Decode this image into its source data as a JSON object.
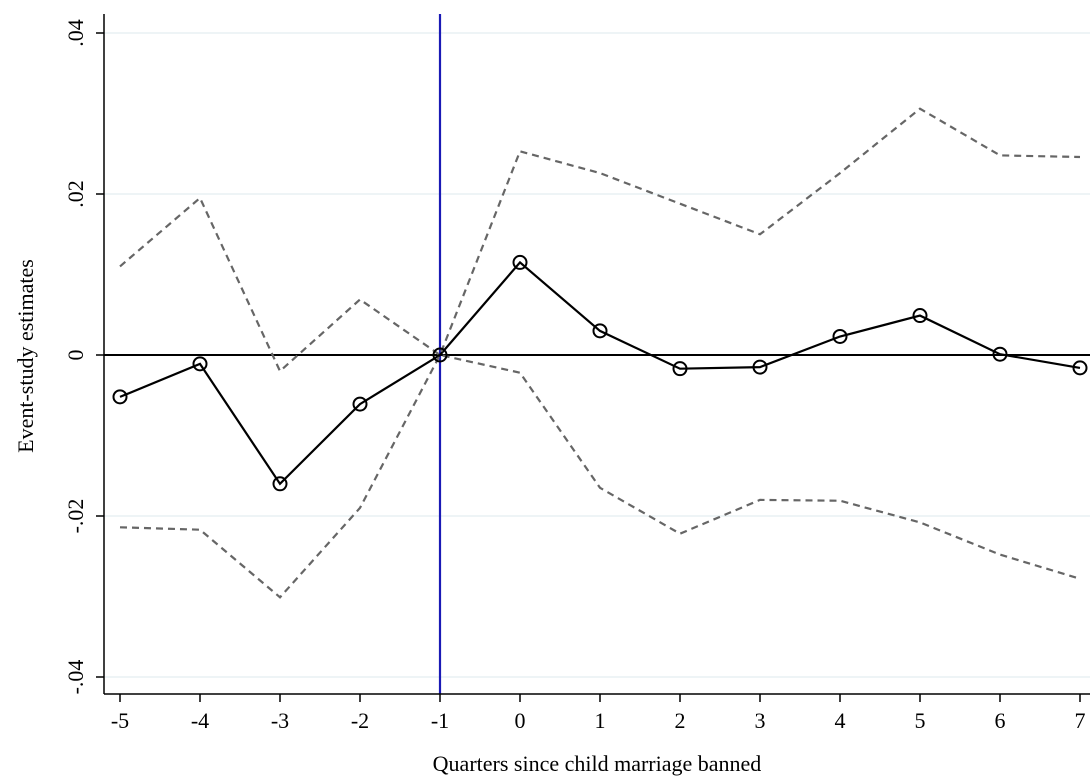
{
  "chart_data": {
    "type": "line",
    "title": "",
    "xlabel": "Quarters since child marriage banned",
    "ylabel": "Event-study estimates",
    "x": [
      -5,
      -4,
      -3,
      -2,
      -1,
      0,
      1,
      2,
      3,
      4,
      5,
      6,
      7
    ],
    "xticks": [
      "-5",
      "-4",
      "-3",
      "-2",
      "-1",
      "0",
      "1",
      "2",
      "3",
      "4",
      "5",
      "6",
      "7"
    ],
    "yticks": [
      -0.04,
      -0.02,
      0,
      0.02,
      0.04
    ],
    "ytick_labels": [
      "-.04",
      "-.02",
      "0",
      ".02",
      ".04"
    ],
    "xlim": [
      -5.05,
      7.0
    ],
    "ylim": [
      -0.042,
      0.042
    ],
    "grid": "horizontal",
    "reference_lines": {
      "y": 0,
      "x": -1,
      "x_color": "#1a1ab5"
    },
    "series": [
      {
        "role": "estimate",
        "style": "solid",
        "marker": "hollow-circle",
        "color": "#000000",
        "values": [
          -0.0052,
          -0.0011,
          -0.016,
          -0.0061,
          0.0,
          0.0115,
          0.003,
          -0.0017,
          -0.0015,
          0.0023,
          0.0049,
          0.0001,
          -0.0016
        ]
      },
      {
        "role": "upper confidence bound",
        "style": "dashed",
        "color": "#666666",
        "values": [
          0.011,
          0.0195,
          -0.002,
          0.0069,
          0.0,
          0.0253,
          0.0226,
          0.0188,
          0.015,
          0.0226,
          0.0306,
          0.0248,
          0.0246
        ]
      },
      {
        "role": "lower confidence bound",
        "style": "dashed",
        "color": "#666666",
        "values": [
          -0.0214,
          -0.0217,
          -0.0301,
          -0.019,
          0.0,
          -0.0022,
          -0.0165,
          -0.0222,
          -0.018,
          -0.0181,
          -0.0208,
          -0.0248,
          -0.0278
        ]
      }
    ]
  }
}
